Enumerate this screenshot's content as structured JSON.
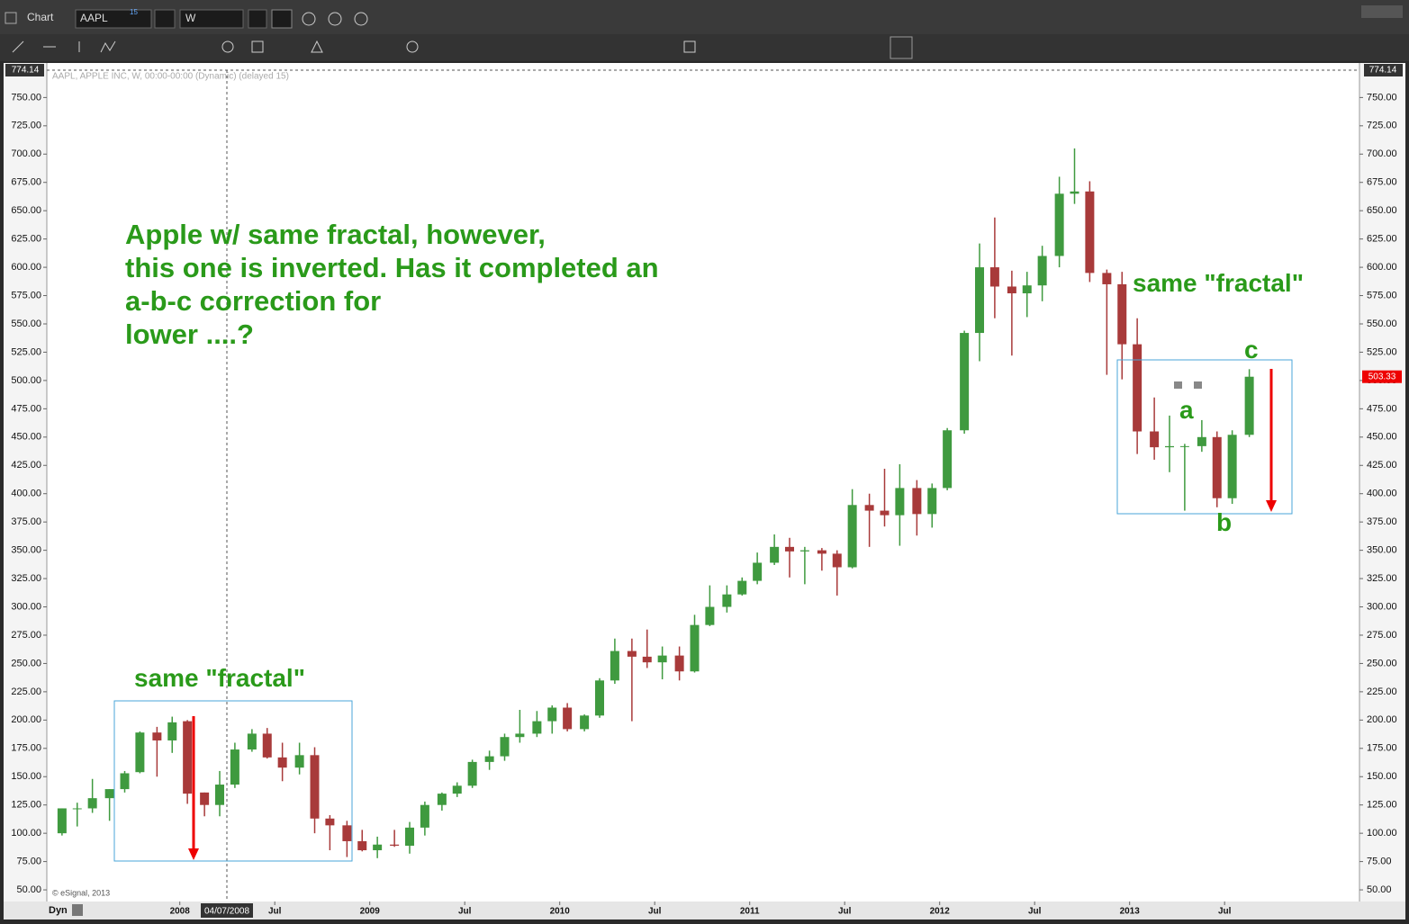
{
  "app": {
    "window_title": "Chart",
    "symbol": "AAPL",
    "symbol_badge": "15",
    "interval": "W",
    "mode": "Dyn",
    "crosshair_date": "04/07/2008"
  },
  "chart_data": {
    "type": "candlestick",
    "subtitle": "AAPL, APPLE INC, W, 00:00-00:00 (Dynamic) (delayed 15)",
    "footnote": "© eSignal, 2013",
    "annotations": {
      "main": [
        "Apple w/ same fractal, however,",
        "this one is inverted.  Has it completed an",
        "a-b-c correction for",
        "lower ....?"
      ],
      "left_label": "same \"fractal\"",
      "right_label": "same \"fractal\"",
      "wave_a": "a",
      "wave_b": "b",
      "wave_c": "c"
    },
    "last_price": 503.33,
    "up_color": "#3f9a3f",
    "down_color": "#a83a3a",
    "xlim": [
      2007.3,
      2014.21
    ],
    "xticks": [
      2008,
      {
        "value": 2008.5,
        "label": "Jul"
      },
      2009,
      {
        "value": 2009.5,
        "label": "Jul"
      },
      2010,
      {
        "value": 2010.5,
        "label": "Jul"
      },
      2011,
      {
        "value": 2011.5,
        "label": "Jul"
      },
      2012,
      {
        "value": 2012.5,
        "label": "Jul"
      },
      2013,
      {
        "value": 2013.5,
        "label": "Jul"
      }
    ],
    "ylim": [
      41.3,
      774.14
    ],
    "yticks": [
      {
        "value": 50,
        "label": "50.00"
      },
      {
        "value": 75,
        "label": "75.00"
      },
      {
        "value": 100,
        "label": "100.00"
      },
      {
        "value": 125,
        "label": "125.00"
      },
      {
        "value": 150,
        "label": "150.00"
      },
      {
        "value": 175,
        "label": "175.00"
      },
      {
        "value": 200,
        "label": "200.00"
      },
      {
        "value": 225,
        "label": "225.00"
      },
      {
        "value": 250,
        "label": "250.00"
      },
      {
        "value": 275,
        "label": "275.00"
      },
      {
        "value": 300,
        "label": "300.00"
      },
      {
        "value": 325,
        "label": "325.00"
      },
      {
        "value": 350,
        "label": "350.00"
      },
      {
        "value": 375,
        "label": "375.00"
      },
      {
        "value": 400,
        "label": "400.00"
      },
      {
        "value": 425,
        "label": "425.00"
      },
      {
        "value": 450,
        "label": "450.00"
      },
      {
        "value": 475,
        "label": "475.00"
      },
      {
        "value": 500,
        "label": "500.00"
      },
      {
        "value": 525,
        "label": "525.00"
      },
      {
        "value": 550,
        "label": "550.00"
      },
      {
        "value": 575,
        "label": "575.00"
      },
      {
        "value": 600,
        "label": "600.00"
      },
      {
        "value": 625,
        "label": "625.00"
      },
      {
        "value": 650,
        "label": "650.00"
      },
      {
        "value": 675,
        "label": "675.00"
      },
      {
        "value": 700,
        "label": "700.00"
      },
      {
        "value": 725,
        "label": "725.00"
      },
      {
        "value": 750,
        "label": "750.00"
      }
    ],
    "grid": false,
    "candles": {
      "x": [
        2007.38,
        2007.46,
        2007.54,
        2007.63,
        2007.71,
        2007.79,
        2007.88,
        2007.96,
        2008.04,
        2008.13,
        2008.21,
        2008.29,
        2008.38,
        2008.46,
        2008.54,
        2008.63,
        2008.71,
        2008.79,
        2008.88,
        2008.96,
        2009.04,
        2009.13,
        2009.21,
        2009.29,
        2009.38,
        2009.46,
        2009.54,
        2009.63,
        2009.71,
        2009.79,
        2009.88,
        2009.96,
        2010.04,
        2010.13,
        2010.21,
        2010.29,
        2010.38,
        2010.46,
        2010.54,
        2010.63,
        2010.71,
        2010.79,
        2010.88,
        2010.96,
        2011.04,
        2011.13,
        2011.21,
        2011.29,
        2011.38,
        2011.46,
        2011.54,
        2011.63,
        2011.71,
        2011.79,
        2011.88,
        2011.96,
        2012.04,
        2012.13,
        2012.21,
        2012.29,
        2012.38,
        2012.46,
        2012.54,
        2012.63,
        2012.71,
        2012.79,
        2012.88,
        2012.96,
        2013.04,
        2013.13,
        2013.21,
        2013.29,
        2013.38,
        2013.46,
        2013.54,
        2013.63
      ],
      "open": [
        100,
        122,
        122,
        131,
        139,
        154,
        189,
        182,
        199,
        136,
        125,
        143,
        174,
        188,
        167,
        158,
        169,
        113,
        107,
        93,
        85,
        90,
        89,
        105,
        125,
        135,
        142,
        163,
        168,
        185,
        188,
        199,
        211,
        192,
        204,
        235,
        261,
        256,
        251,
        257,
        243,
        284,
        300,
        311,
        323,
        339,
        353,
        349,
        350,
        347,
        335,
        390,
        385,
        381,
        405,
        382,
        405,
        456,
        542,
        600,
        583,
        577,
        584,
        610,
        665,
        667,
        595,
        585,
        532,
        455,
        441,
        442,
        442,
        450,
        396,
        452
      ],
      "high": [
        122,
        127,
        148,
        139,
        155,
        190,
        194,
        203,
        200,
        136,
        155,
        180,
        192,
        193,
        180,
        180,
        176,
        116,
        111,
        103,
        97,
        103,
        110,
        128,
        136,
        145,
        165,
        173,
        188,
        209,
        208,
        213,
        215,
        205,
        237,
        272,
        272,
        280,
        265,
        265,
        293,
        319,
        319,
        326,
        348,
        364,
        361,
        353,
        352,
        350,
        404,
        400,
        422,
        426,
        412,
        409,
        458,
        544,
        621,
        644,
        597,
        596,
        619,
        680,
        705,
        676,
        598,
        596,
        555,
        485,
        469,
        444,
        465,
        455,
        456,
        510
      ],
      "low": [
        98,
        106,
        118,
        111,
        136,
        153,
        150,
        171,
        126,
        115,
        115,
        140,
        172,
        166,
        146,
        152,
        100,
        85,
        79,
        84,
        78,
        88,
        82,
        98,
        120,
        132,
        140,
        156,
        164,
        180,
        185,
        188,
        190,
        190,
        202,
        232,
        199,
        246,
        236,
        235,
        242,
        283,
        295,
        310,
        320,
        337,
        326,
        320,
        332,
        310,
        334,
        353,
        371,
        354,
        363,
        370,
        403,
        453,
        517,
        555,
        522,
        556,
        570,
        600,
        656,
        587,
        505,
        501,
        435,
        430,
        419,
        385,
        437,
        388,
        391,
        450
      ],
      "close": [
        122,
        122,
        131,
        139,
        153,
        189,
        182,
        198,
        135,
        125,
        143,
        174,
        188,
        167,
        158,
        169,
        113,
        107,
        93,
        85,
        90,
        89,
        105,
        125,
        135,
        142,
        163,
        168,
        185,
        188,
        199,
        211,
        192,
        204,
        235,
        261,
        256,
        251,
        257,
        243,
        284,
        300,
        311,
        323,
        339,
        353,
        349,
        350,
        347,
        335,
        390,
        385,
        381,
        405,
        382,
        405,
        456,
        542,
        600,
        583,
        577,
        584,
        610,
        665,
        667,
        595,
        585,
        532,
        455,
        441,
        442,
        442,
        450,
        396,
        452,
        503.33
      ]
    }
  }
}
